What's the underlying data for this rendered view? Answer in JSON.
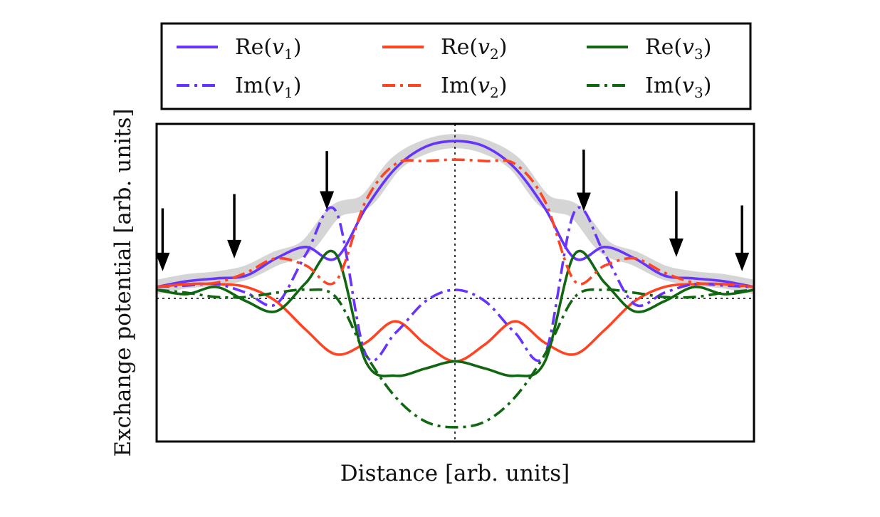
{
  "chart_data": {
    "type": "line",
    "title": "",
    "xlabel": "Distance [arb. units]",
    "ylabel": "Exchange potential [arb. units]",
    "tick_labels": "none",
    "grid": false,
    "reference_lines": {
      "vertical_x": 0,
      "horizontal_y": 0,
      "style": "dotted",
      "color": "#000000"
    },
    "xlim": [
      -1,
      1
    ],
    "ylim": [
      -1.06,
      1.16
    ],
    "legend": {
      "placement": "outside-top",
      "entries": [
        {
          "series": "re_v1",
          "base": "Re(",
          "var": "v",
          "sub": "1",
          "close": ")"
        },
        {
          "series": "re_v2",
          "base": "Re(",
          "var": "v",
          "sub": "2",
          "close": ")"
        },
        {
          "series": "re_v3",
          "base": "Re(",
          "var": "v",
          "sub": "3",
          "close": ")"
        },
        {
          "series": "im_v1",
          "base": "Im(",
          "var": "v",
          "sub": "1",
          "close": ")"
        },
        {
          "series": "im_v2",
          "base": "Im(",
          "var": "v",
          "sub": "2",
          "close": ")"
        },
        {
          "series": "im_v3",
          "base": "Im(",
          "var": "v",
          "sub": "3",
          "close": ")"
        }
      ]
    },
    "highlight_band": {
      "color": "#d0d0d0",
      "description": "grey envelope along the maximum of the curves"
    },
    "arrows": {
      "direction": "down",
      "color": "#000000",
      "x": [
        -0.98,
        -0.74,
        -0.43,
        0.43,
        0.74,
        0.96
      ],
      "tip_y": [
        0.13,
        0.22,
        0.56,
        0.55,
        0.23,
        0.13
      ],
      "tail_y": [
        0.57,
        0.67,
        0.97,
        0.98,
        0.69,
        0.59
      ]
    },
    "series": [
      {
        "id": "re_v1",
        "name": "Re(v1)",
        "color": "#6633ff",
        "style": "solid",
        "x": [
          -1,
          -0.9,
          -0.8,
          -0.7,
          -0.6,
          -0.5,
          -0.4,
          -0.3,
          -0.2,
          -0.1,
          0,
          0.1,
          0.2,
          0.3,
          0.4,
          0.5,
          0.6,
          0.7,
          0.8,
          0.9,
          1
        ],
        "y": [
          0.02,
          0.06,
          0.08,
          0.1,
          0.22,
          0.3,
          0.22,
          0.57,
          0.85,
          1.0,
          1.04,
          1.0,
          0.85,
          0.57,
          0.22,
          0.3,
          0.22,
          0.1,
          0.08,
          0.06,
          0.02
        ]
      },
      {
        "id": "re_v2",
        "name": "Re(v2)",
        "color": "#ff4422",
        "style": "solid",
        "x": [
          -1,
          -0.9,
          -0.8,
          -0.7,
          -0.6,
          -0.5,
          -0.4,
          -0.3,
          -0.2,
          -0.1,
          0,
          0.1,
          0.2,
          0.3,
          0.4,
          0.5,
          0.6,
          0.7,
          0.8,
          0.9,
          1
        ],
        "y": [
          0.02,
          0.04,
          0.04,
          0.02,
          -0.08,
          -0.28,
          -0.45,
          -0.37,
          -0.22,
          -0.38,
          -0.5,
          -0.38,
          -0.22,
          -0.37,
          -0.45,
          -0.28,
          -0.08,
          0.02,
          0.04,
          0.04,
          0.02
        ]
      },
      {
        "id": "re_v3",
        "name": "Re(v3)",
        "color": "#116611",
        "style": "solid",
        "x": [
          -1,
          -0.9,
          -0.8,
          -0.7,
          -0.6,
          -0.5,
          -0.4,
          -0.3,
          -0.2,
          -0.1,
          0,
          0.1,
          0.2,
          0.3,
          0.4,
          0.5,
          0.6,
          0.7,
          0.8,
          0.9,
          1
        ],
        "y": [
          0.0,
          -0.03,
          0.02,
          -0.08,
          -0.15,
          0.05,
          0.25,
          -0.5,
          -0.6,
          -0.55,
          -0.5,
          -0.55,
          -0.6,
          -0.5,
          0.25,
          0.05,
          -0.15,
          -0.08,
          0.02,
          -0.03,
          0.0
        ]
      },
      {
        "id": "im_v1",
        "name": "Im(v1)",
        "color": "#6633ff",
        "style": "dash-dot",
        "x": [
          -1,
          -0.9,
          -0.8,
          -0.7,
          -0.6,
          -0.5,
          -0.4,
          -0.3,
          -0.2,
          -0.1,
          0,
          0.1,
          0.2,
          0.3,
          0.4,
          0.5,
          0.6,
          0.7,
          0.8,
          0.9,
          1
        ],
        "y": [
          0.02,
          0.03,
          0.04,
          -0.02,
          -0.1,
          0.25,
          0.55,
          -0.45,
          -0.3,
          -0.08,
          0.0,
          -0.08,
          -0.3,
          -0.45,
          0.55,
          0.25,
          -0.1,
          -0.02,
          0.04,
          0.03,
          0.02
        ]
      },
      {
        "id": "im_v2",
        "name": "Im(v2)",
        "color": "#ff4422",
        "style": "dash-dot",
        "x": [
          -1,
          -0.9,
          -0.8,
          -0.7,
          -0.6,
          -0.5,
          -0.4,
          -0.3,
          -0.2,
          -0.1,
          0,
          0.1,
          0.2,
          0.3,
          0.4,
          0.5,
          0.6,
          0.7,
          0.8,
          0.9,
          1
        ],
        "y": [
          0.02,
          0.04,
          0.05,
          0.12,
          0.22,
          0.17,
          0.06,
          0.62,
          0.88,
          0.9,
          0.91,
          0.9,
          0.88,
          0.62,
          0.06,
          0.17,
          0.22,
          0.12,
          0.05,
          0.04,
          0.02
        ]
      },
      {
        "id": "im_v3",
        "name": "Im(v3)",
        "color": "#116611",
        "style": "dash-dot",
        "x": [
          -1,
          -0.9,
          -0.8,
          -0.7,
          -0.6,
          -0.5,
          -0.4,
          -0.3,
          -0.2,
          -0.1,
          0,
          0.1,
          0.2,
          0.3,
          0.4,
          0.5,
          0.6,
          0.7,
          0.8,
          0.9,
          1
        ],
        "y": [
          0.0,
          -0.02,
          -0.05,
          -0.05,
          -0.02,
          0.0,
          -0.05,
          -0.45,
          -0.75,
          -0.92,
          -0.96,
          -0.92,
          -0.75,
          -0.45,
          -0.05,
          0.0,
          -0.02,
          -0.05,
          -0.05,
          -0.02,
          0.0
        ]
      }
    ]
  }
}
